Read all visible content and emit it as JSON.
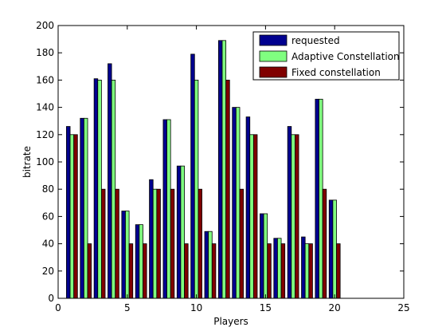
{
  "chart_data": {
    "type": "bar",
    "xlabel": "Players",
    "ylabel": "bitrate",
    "xlim": [
      0,
      25
    ],
    "ylim": [
      0,
      200
    ],
    "xticks": [
      0,
      5,
      10,
      15,
      20,
      25
    ],
    "yticks": [
      0,
      20,
      40,
      60,
      80,
      100,
      120,
      140,
      160,
      180,
      200
    ],
    "grid": false,
    "legend_position": "top-right",
    "categories": [
      1,
      2,
      3,
      4,
      5,
      6,
      7,
      8,
      9,
      10,
      11,
      12,
      13,
      14,
      15,
      16,
      17,
      18,
      19,
      20
    ],
    "series": [
      {
        "name": "requested",
        "color": "#00008f",
        "values": [
          126,
          132,
          161,
          172,
          64,
          54,
          87,
          131,
          97,
          179,
          49,
          189,
          140,
          133,
          62,
          44,
          126,
          45,
          146,
          72
        ]
      },
      {
        "name": "Adaptive Constellation",
        "color": "#80ff80",
        "values": [
          120,
          132,
          160,
          160,
          64,
          54,
          80,
          131,
          97,
          160,
          49,
          189,
          140,
          120,
          62,
          44,
          120,
          40,
          146,
          72
        ]
      },
      {
        "name": "Fixed constellation",
        "color": "#800000",
        "values": [
          120,
          40,
          80,
          80,
          40,
          40,
          80,
          80,
          40,
          80,
          40,
          160,
          80,
          120,
          40,
          40,
          120,
          40,
          80,
          40
        ]
      }
    ]
  }
}
